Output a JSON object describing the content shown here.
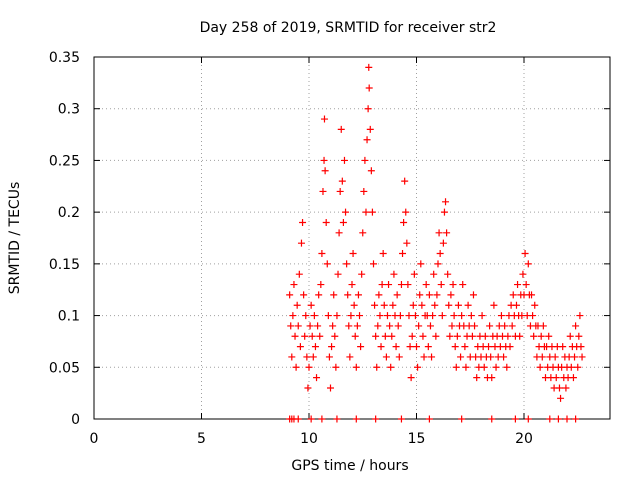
{
  "chart_data": {
    "type": "scatter",
    "title": "Day 258 of 2019, SRMTID for receiver str2",
    "xlabel": "GPS time / hours",
    "ylabel": "SRMTID / TECUs",
    "xlim": [
      0,
      24
    ],
    "ylim": [
      0,
      0.35
    ],
    "xticks": [
      0,
      5,
      10,
      15,
      20
    ],
    "xtick_labels": [
      "0",
      "5",
      "10",
      "15",
      "20"
    ],
    "yticks": [
      0,
      0.05,
      0.1,
      0.15,
      0.2,
      0.25,
      0.3,
      0.35
    ],
    "ytick_labels": [
      "0",
      "0.05",
      "0.1",
      "0.15",
      "0.2",
      "0.25",
      "0.3",
      "0.35"
    ],
    "grid": true,
    "marker": "+",
    "color": "#ff0000",
    "series": [
      {
        "name": "str2",
        "points": [
          [
            9.1,
            0.12
          ],
          [
            9.15,
            0.09
          ],
          [
            9.2,
            0.06
          ],
          [
            9.25,
            0.1
          ],
          [
            9.3,
            0.13
          ],
          [
            9.35,
            0.08
          ],
          [
            9.4,
            0.05
          ],
          [
            9.45,
            0.11
          ],
          [
            9.5,
            0.09
          ],
          [
            9.55,
            0.14
          ],
          [
            9.6,
            0.07
          ],
          [
            9.65,
            0.17
          ],
          [
            9.7,
            0.19
          ],
          [
            9.75,
            0.12
          ],
          [
            9.8,
            0.08
          ],
          [
            9.85,
            0.1
          ],
          [
            9.9,
            0.06
          ],
          [
            9.95,
            0.03
          ],
          [
            10.0,
            0.05
          ],
          [
            10.05,
            0.09
          ],
          [
            10.1,
            0.11
          ],
          [
            10.15,
            0.08
          ],
          [
            10.2,
            0.06
          ],
          [
            10.25,
            0.1
          ],
          [
            10.3,
            0.07
          ],
          [
            10.35,
            0.04
          ],
          [
            10.4,
            0.09
          ],
          [
            10.45,
            0.12
          ],
          [
            10.5,
            0.08
          ],
          [
            10.55,
            0.13
          ],
          [
            10.6,
            0.16
          ],
          [
            10.65,
            0.22
          ],
          [
            10.7,
            0.25
          ],
          [
            10.72,
            0.29
          ],
          [
            10.75,
            0.24
          ],
          [
            10.8,
            0.19
          ],
          [
            10.85,
            0.15
          ],
          [
            10.9,
            0.1
          ],
          [
            10.95,
            0.06
          ],
          [
            11.0,
            0.03
          ],
          [
            11.05,
            0.07
          ],
          [
            11.1,
            0.09
          ],
          [
            11.15,
            0.12
          ],
          [
            11.2,
            0.08
          ],
          [
            11.25,
            0.05
          ],
          [
            11.3,
            0.1
          ],
          [
            11.35,
            0.14
          ],
          [
            11.4,
            0.18
          ],
          [
            11.45,
            0.22
          ],
          [
            11.5,
            0.28
          ],
          [
            11.55,
            0.23
          ],
          [
            11.6,
            0.19
          ],
          [
            11.65,
            0.25
          ],
          [
            11.7,
            0.2
          ],
          [
            11.75,
            0.15
          ],
          [
            11.8,
            0.12
          ],
          [
            11.85,
            0.09
          ],
          [
            11.9,
            0.06
          ],
          [
            11.95,
            0.1
          ],
          [
            12.0,
            0.13
          ],
          [
            12.05,
            0.16
          ],
          [
            12.1,
            0.11
          ],
          [
            12.15,
            0.08
          ],
          [
            12.2,
            0.05
          ],
          [
            12.25,
            0.09
          ],
          [
            12.3,
            0.12
          ],
          [
            12.35,
            0.1
          ],
          [
            12.4,
            0.07
          ],
          [
            12.45,
            0.14
          ],
          [
            12.5,
            0.18
          ],
          [
            12.55,
            0.22
          ],
          [
            12.6,
            0.25
          ],
          [
            12.65,
            0.2
          ],
          [
            12.7,
            0.27
          ],
          [
            12.75,
            0.3
          ],
          [
            12.78,
            0.34
          ],
          [
            12.8,
            0.32
          ],
          [
            12.85,
            0.28
          ],
          [
            12.9,
            0.24
          ],
          [
            12.95,
            0.2
          ],
          [
            13.0,
            0.15
          ],
          [
            13.05,
            0.11
          ],
          [
            13.1,
            0.08
          ],
          [
            13.15,
            0.05
          ],
          [
            13.2,
            0.09
          ],
          [
            13.25,
            0.12
          ],
          [
            13.3,
            0.1
          ],
          [
            13.35,
            0.07
          ],
          [
            13.4,
            0.13
          ],
          [
            13.45,
            0.16
          ],
          [
            13.5,
            0.11
          ],
          [
            13.55,
            0.08
          ],
          [
            13.6,
            0.06
          ],
          [
            13.65,
            0.1
          ],
          [
            13.7,
            0.13
          ],
          [
            13.75,
            0.09
          ],
          [
            13.8,
            0.05
          ],
          [
            13.85,
            0.08
          ],
          [
            13.9,
            0.11
          ],
          [
            13.95,
            0.14
          ],
          [
            14.0,
            0.1
          ],
          [
            14.05,
            0.07
          ],
          [
            14.1,
            0.12
          ],
          [
            14.15,
            0.09
          ],
          [
            14.2,
            0.06
          ],
          [
            14.25,
            0.1
          ],
          [
            14.3,
            0.13
          ],
          [
            14.35,
            0.16
          ],
          [
            14.4,
            0.19
          ],
          [
            14.45,
            0.23
          ],
          [
            14.5,
            0.2
          ],
          [
            14.55,
            0.17
          ],
          [
            14.6,
            0.13
          ],
          [
            14.65,
            0.1
          ],
          [
            14.7,
            0.07
          ],
          [
            14.75,
            0.04
          ],
          [
            14.8,
            0.08
          ],
          [
            14.85,
            0.11
          ],
          [
            14.9,
            0.14
          ],
          [
            14.95,
            0.1
          ],
          [
            15.0,
            0.07
          ],
          [
            15.05,
            0.05
          ],
          [
            15.1,
            0.09
          ],
          [
            15.15,
            0.12
          ],
          [
            15.2,
            0.15
          ],
          [
            15.25,
            0.11
          ],
          [
            15.3,
            0.08
          ],
          [
            15.35,
            0.06
          ],
          [
            15.4,
            0.1
          ],
          [
            15.45,
            0.13
          ],
          [
            15.5,
            0.1
          ],
          [
            15.55,
            0.07
          ],
          [
            15.6,
            0.12
          ],
          [
            15.65,
            0.09
          ],
          [
            15.7,
            0.06
          ],
          [
            15.75,
            0.1
          ],
          [
            15.8,
            0.14
          ],
          [
            15.85,
            0.11
          ],
          [
            15.9,
            0.08
          ],
          [
            15.95,
            0.12
          ],
          [
            16.0,
            0.15
          ],
          [
            16.05,
            0.18
          ],
          [
            16.1,
            0.16
          ],
          [
            16.15,
            0.13
          ],
          [
            16.2,
            0.1
          ],
          [
            16.25,
            0.17
          ],
          [
            16.3,
            0.2
          ],
          [
            16.35,
            0.21
          ],
          [
            16.4,
            0.18
          ],
          [
            16.45,
            0.14
          ],
          [
            16.5,
            0.11
          ],
          [
            16.55,
            0.08
          ],
          [
            16.6,
            0.12
          ],
          [
            16.65,
            0.09
          ],
          [
            16.7,
            0.13
          ],
          [
            16.75,
            0.1
          ],
          [
            16.8,
            0.07
          ],
          [
            16.85,
            0.05
          ],
          [
            16.9,
            0.08
          ],
          [
            16.95,
            0.11
          ],
          [
            17.0,
            0.09
          ],
          [
            17.05,
            0.06
          ],
          [
            17.1,
            0.1
          ],
          [
            17.15,
            0.13
          ],
          [
            17.2,
            0.09
          ],
          [
            17.25,
            0.07
          ],
          [
            17.3,
            0.05
          ],
          [
            17.35,
            0.08
          ],
          [
            17.4,
            0.11
          ],
          [
            17.45,
            0.09
          ],
          [
            17.5,
            0.06
          ],
          [
            17.55,
            0.1
          ],
          [
            17.6,
            0.08
          ],
          [
            17.65,
            0.12
          ],
          [
            17.7,
            0.09
          ],
          [
            17.75,
            0.06
          ],
          [
            17.8,
            0.04
          ],
          [
            17.85,
            0.07
          ],
          [
            17.9,
            0.05
          ],
          [
            17.95,
            0.08
          ],
          [
            18.0,
            0.06
          ],
          [
            18.05,
            0.1
          ],
          [
            18.1,
            0.07
          ],
          [
            18.15,
            0.05
          ],
          [
            18.2,
            0.08
          ],
          [
            18.25,
            0.06
          ],
          [
            18.3,
            0.04
          ],
          [
            18.35,
            0.07
          ],
          [
            18.4,
            0.09
          ],
          [
            18.45,
            0.06
          ],
          [
            18.5,
            0.04
          ],
          [
            18.55,
            0.08
          ],
          [
            18.6,
            0.11
          ],
          [
            18.65,
            0.07
          ],
          [
            18.7,
            0.05
          ],
          [
            18.75,
            0.08
          ],
          [
            18.8,
            0.06
          ],
          [
            18.85,
            0.09
          ],
          [
            18.9,
            0.07
          ],
          [
            18.95,
            0.1
          ],
          [
            19.0,
            0.08
          ],
          [
            19.05,
            0.06
          ],
          [
            19.1,
            0.09
          ],
          [
            19.15,
            0.07
          ],
          [
            19.2,
            0.05
          ],
          [
            19.25,
            0.08
          ],
          [
            19.3,
            0.1
          ],
          [
            19.35,
            0.07
          ],
          [
            19.4,
            0.11
          ],
          [
            19.45,
            0.09
          ],
          [
            19.5,
            0.12
          ],
          [
            19.55,
            0.1
          ],
          [
            19.6,
            0.08
          ],
          [
            19.65,
            0.11
          ],
          [
            19.7,
            0.13
          ],
          [
            19.75,
            0.1
          ],
          [
            19.8,
            0.08
          ],
          [
            19.85,
            0.12
          ],
          [
            19.9,
            0.1
          ],
          [
            19.95,
            0.14
          ],
          [
            20.0,
            0.12
          ],
          [
            20.05,
            0.16
          ],
          [
            20.1,
            0.13
          ],
          [
            20.15,
            0.1
          ],
          [
            20.2,
            0.15
          ],
          [
            20.25,
            0.12
          ],
          [
            20.3,
            0.09
          ],
          [
            20.35,
            0.12
          ],
          [
            20.4,
            0.1
          ],
          [
            20.45,
            0.08
          ],
          [
            20.5,
            0.11
          ],
          [
            20.55,
            0.09
          ],
          [
            20.6,
            0.06
          ],
          [
            20.65,
            0.09
          ],
          [
            20.7,
            0.07
          ],
          [
            20.75,
            0.05
          ],
          [
            20.8,
            0.08
          ],
          [
            20.85,
            0.06
          ],
          [
            20.9,
            0.09
          ],
          [
            20.95,
            0.07
          ],
          [
            21.0,
            0.04
          ],
          [
            21.05,
            0.07
          ],
          [
            21.1,
            0.05
          ],
          [
            21.15,
            0.08
          ],
          [
            21.2,
            0.06
          ],
          [
            21.25,
            0.04
          ],
          [
            21.3,
            0.07
          ],
          [
            21.35,
            0.05
          ],
          [
            21.4,
            0.03
          ],
          [
            21.45,
            0.06
          ],
          [
            21.5,
            0.04
          ],
          [
            21.55,
            0.07
          ],
          [
            21.6,
            0.05
          ],
          [
            21.65,
            0.03
          ],
          [
            21.7,
            0.02
          ],
          [
            21.75,
            0.05
          ],
          [
            21.8,
            0.07
          ],
          [
            21.85,
            0.04
          ],
          [
            21.9,
            0.06
          ],
          [
            21.95,
            0.03
          ],
          [
            22.0,
            0.05
          ],
          [
            22.05,
            0.04
          ],
          [
            22.1,
            0.06
          ],
          [
            22.15,
            0.08
          ],
          [
            22.2,
            0.05
          ],
          [
            22.25,
            0.07
          ],
          [
            22.3,
            0.04
          ],
          [
            22.35,
            0.06
          ],
          [
            22.4,
            0.09
          ],
          [
            22.45,
            0.07
          ],
          [
            22.5,
            0.05
          ],
          [
            22.55,
            0.08
          ],
          [
            22.6,
            0.1
          ],
          [
            22.65,
            0.07
          ],
          [
            22.7,
            0.06
          ]
        ]
      }
    ],
    "zero_markers_x": [
      9.1,
      9.2,
      9.3,
      9.5,
      10.1,
      10.6,
      11.3,
      12.2,
      13.1,
      14.3,
      15.6,
      17.1,
      18.5,
      19.6,
      20.2,
      21.2,
      21.6,
      22.0,
      22.4
    ]
  }
}
